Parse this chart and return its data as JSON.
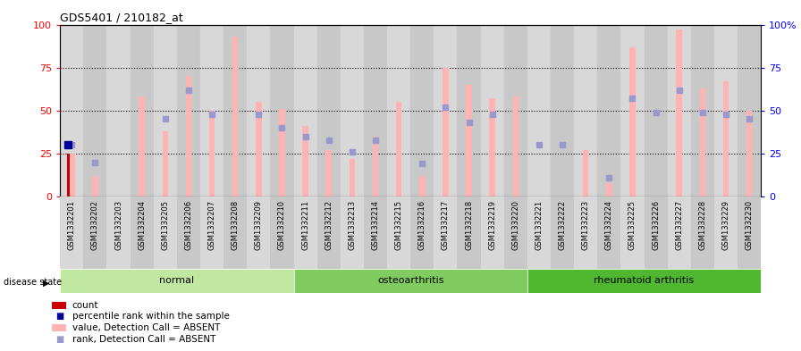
{
  "title": "GDS5401 / 210182_at",
  "samples": [
    "GSM1332201",
    "GSM1332202",
    "GSM1332203",
    "GSM1332204",
    "GSM1332205",
    "GSM1332206",
    "GSM1332207",
    "GSM1332208",
    "GSM1332209",
    "GSM1332210",
    "GSM1332211",
    "GSM1332212",
    "GSM1332213",
    "GSM1332214",
    "GSM1332215",
    "GSM1332216",
    "GSM1332217",
    "GSM1332218",
    "GSM1332219",
    "GSM1332220",
    "GSM1332221",
    "GSM1332222",
    "GSM1332223",
    "GSM1332224",
    "GSM1332225",
    "GSM1332226",
    "GSM1332227",
    "GSM1332228",
    "GSM1332229",
    "GSM1332230"
  ],
  "pink_bar_heights": [
    25,
    12,
    0,
    58,
    38,
    70,
    50,
    93,
    55,
    51,
    41,
    27,
    22,
    35,
    55,
    12,
    75,
    65,
    57,
    58,
    0,
    0,
    27,
    8,
    87,
    0,
    97,
    63,
    67,
    50
  ],
  "blue_square_heights": [
    30,
    20,
    0,
    0,
    45,
    62,
    48,
    0,
    48,
    40,
    35,
    33,
    26,
    33,
    0,
    19,
    52,
    43,
    48,
    0,
    30,
    30,
    0,
    11,
    57,
    49,
    62,
    49,
    48,
    45
  ],
  "count_val": 25,
  "percentile_val": 30,
  "disease_groups": [
    {
      "label": "normal",
      "start": 0,
      "end": 10,
      "color": "#c0e8a0"
    },
    {
      "label": "osteoarthritis",
      "start": 10,
      "end": 20,
      "color": "#80cc60"
    },
    {
      "label": "rheumatoid arthritis",
      "start": 20,
      "end": 30,
      "color": "#50b830"
    }
  ],
  "pink_color": "#ffb3b3",
  "blue_color": "#9999cc",
  "count_color": "#cc0000",
  "percentile_color": "#000099",
  "ylim": [
    0,
    100
  ],
  "y_ticks": [
    0,
    25,
    50,
    75,
    100
  ],
  "plot_bg": "#ffffff"
}
